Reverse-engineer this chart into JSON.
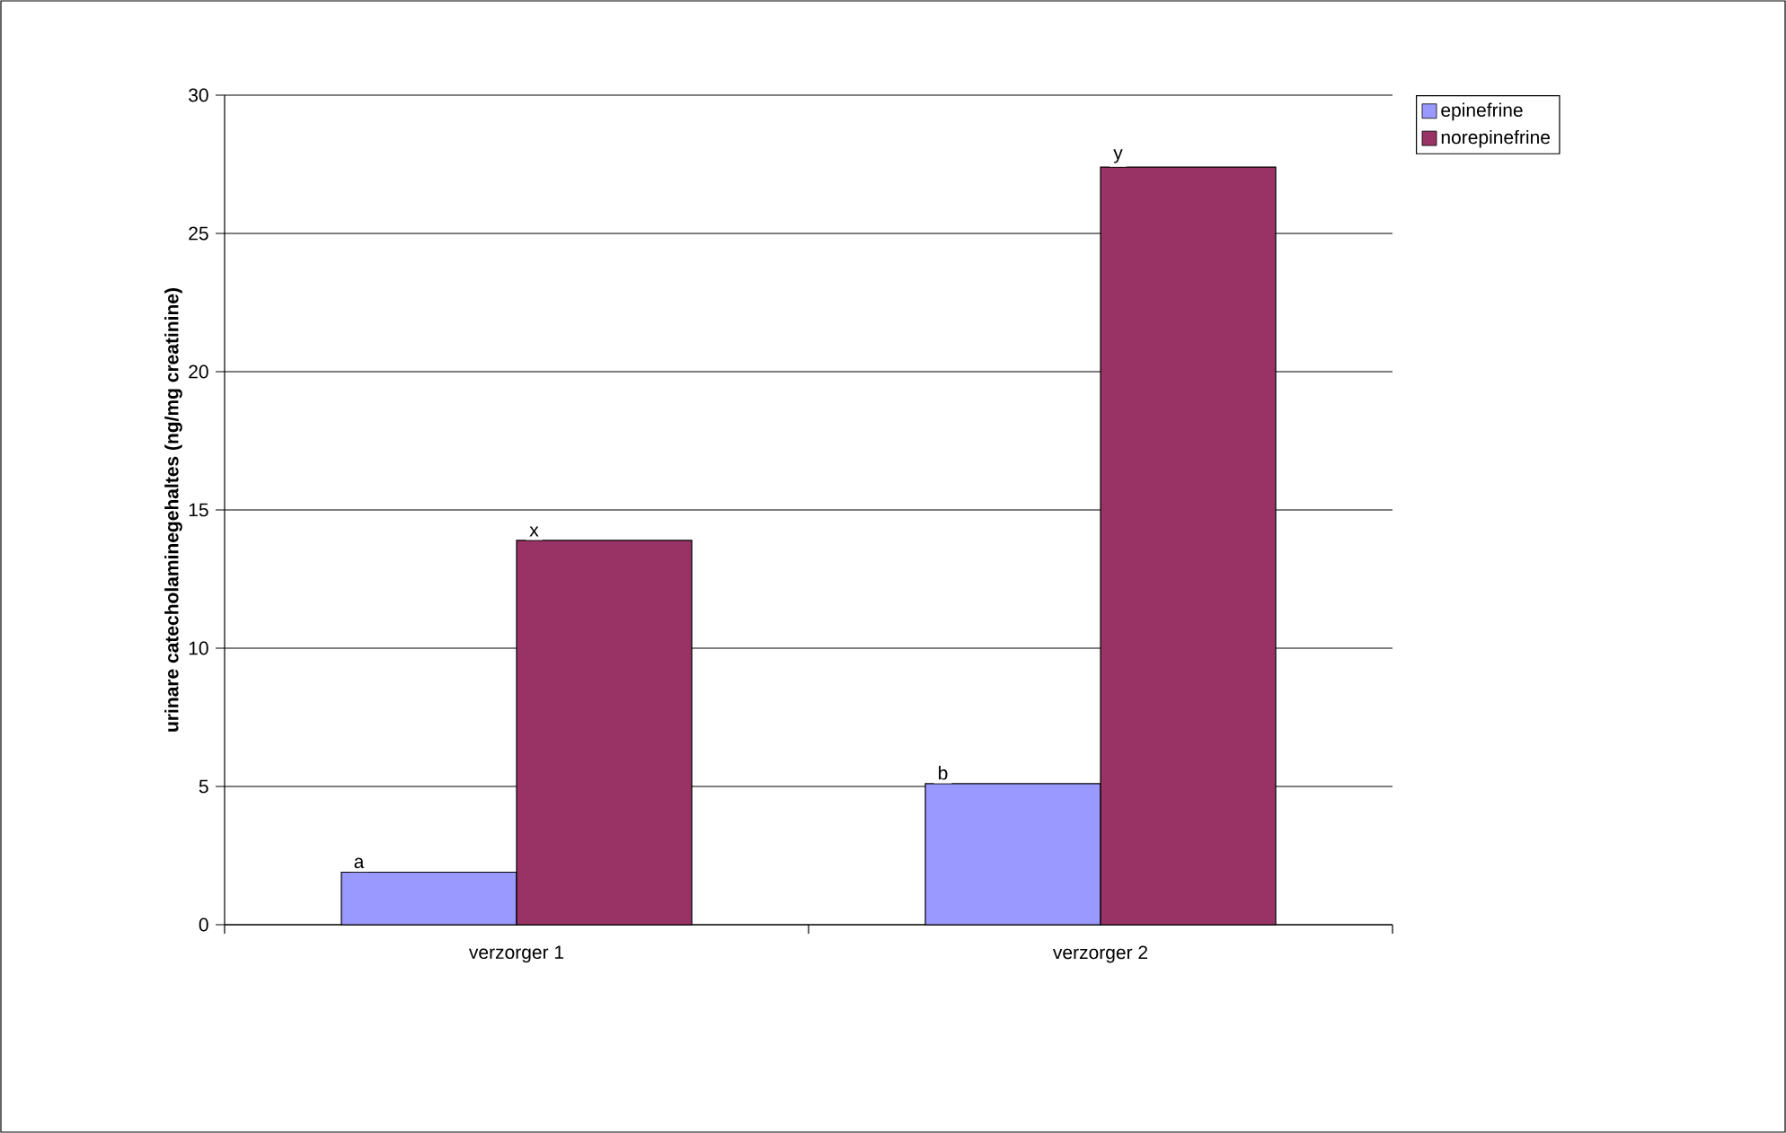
{
  "chart_data": {
    "type": "bar",
    "ylabel": "urinare catecholaminegehaltes (ng/mg creatinine)",
    "categories": [
      "verzorger 1",
      "verzorger 2"
    ],
    "series": [
      {
        "name": "epinefrine",
        "color": "#9999ff",
        "values": [
          1.9,
          5.1
        ]
      },
      {
        "name": "norepinefrine",
        "color": "#993366",
        "values": [
          13.9,
          27.4
        ]
      }
    ],
    "ylim": [
      0,
      30
    ],
    "yticks": [
      0,
      5,
      10,
      15,
      20,
      25,
      30
    ],
    "grid": "y",
    "legend": "right",
    "annotations": [
      "a",
      "x",
      "b",
      "y"
    ]
  }
}
